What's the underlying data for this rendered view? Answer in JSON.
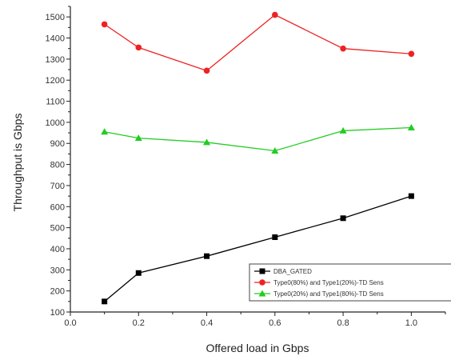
{
  "chart_data": {
    "type": "line",
    "title": "",
    "xlabel": "Offered load in Gbps",
    "ylabel": "Throughput is Gbps",
    "xlim": [
      0.0,
      1.1
    ],
    "ylim": [
      100,
      1550
    ],
    "x_ticks": [
      "0.0",
      "0.2",
      "0.4",
      "0.6",
      "0.8",
      "1.0"
    ],
    "y_ticks": [
      "100",
      "200",
      "300",
      "400",
      "500",
      "600",
      "700",
      "800",
      "900",
      "1000",
      "1100",
      "1200",
      "1300",
      "1400",
      "1500"
    ],
    "grid": false,
    "legend_position": "bottom-right",
    "x": [
      0.1,
      0.2,
      0.4,
      0.6,
      0.8,
      1.0
    ],
    "series": [
      {
        "name": "DBA_GATED",
        "color": "#000000",
        "marker": "square",
        "values": [
          150,
          285,
          365,
          455,
          545,
          650
        ]
      },
      {
        "name": "Type0(80%) and Type1(20%)-TD Sens",
        "color": "#ee2222",
        "marker": "circle",
        "values": [
          1465,
          1355,
          1245,
          1510,
          1350,
          1325
        ]
      },
      {
        "name": "Type0(20%) and Type1(80%)-TD Sens",
        "color": "#22cc22",
        "marker": "triangle",
        "values": [
          955,
          925,
          905,
          865,
          960,
          975
        ]
      }
    ]
  }
}
